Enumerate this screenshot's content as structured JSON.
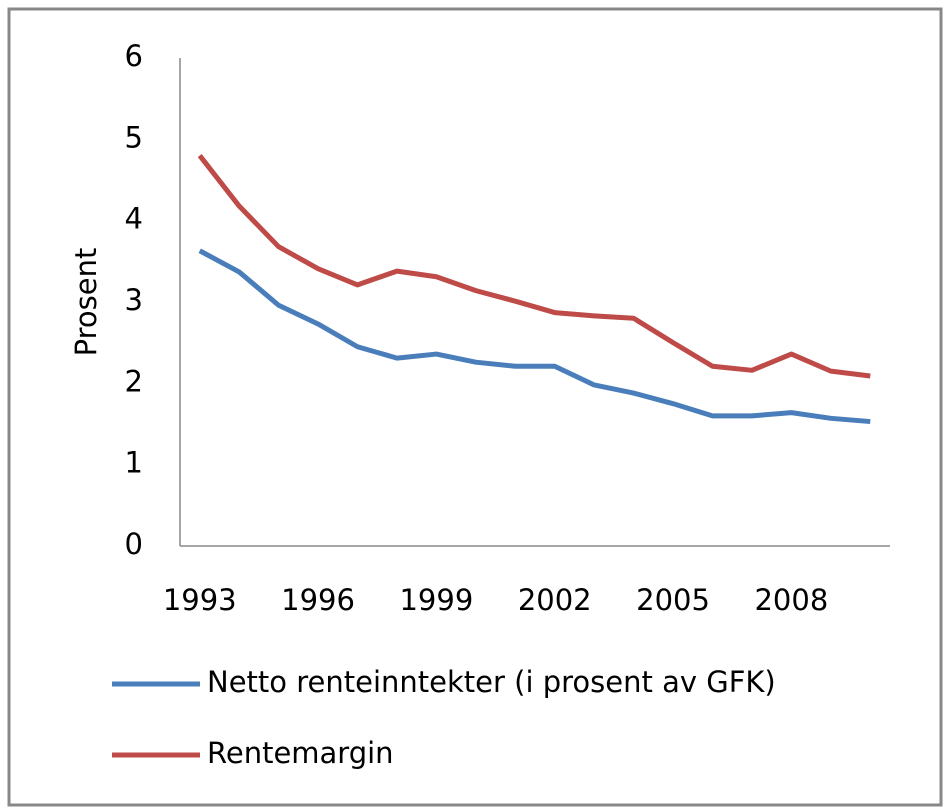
{
  "chart_data": {
    "type": "line",
    "y_label": "Prosent",
    "categories": [
      "1993",
      null,
      null,
      "1996",
      null,
      null,
      "1999",
      null,
      null,
      "2002",
      null,
      null,
      "2005",
      null,
      null,
      "2008",
      null,
      null
    ],
    "series": [
      {
        "name": "Netto renteinntekter (i prosent av GFK)",
        "color": "#4a7ebb",
        "values": [
          3.63,
          3.37,
          2.96,
          2.73,
          2.45,
          2.31,
          2.36,
          2.26,
          2.21,
          2.21,
          1.98,
          1.88,
          1.75,
          1.6,
          1.6,
          1.64,
          1.57,
          1.53
        ]
      },
      {
        "name": "Rentemargin",
        "color": "#be4b48",
        "values": [
          4.8,
          4.18,
          3.68,
          3.41,
          3.21,
          3.38,
          3.31,
          3.14,
          3.01,
          2.87,
          2.83,
          2.8,
          2.5,
          2.21,
          2.16,
          2.36,
          2.15,
          2.09
        ]
      }
    ],
    "ylim": [
      0,
      6
    ],
    "yticks": [
      0,
      1,
      2,
      3,
      4,
      5,
      6
    ],
    "grid": false,
    "legend": "bottom"
  }
}
